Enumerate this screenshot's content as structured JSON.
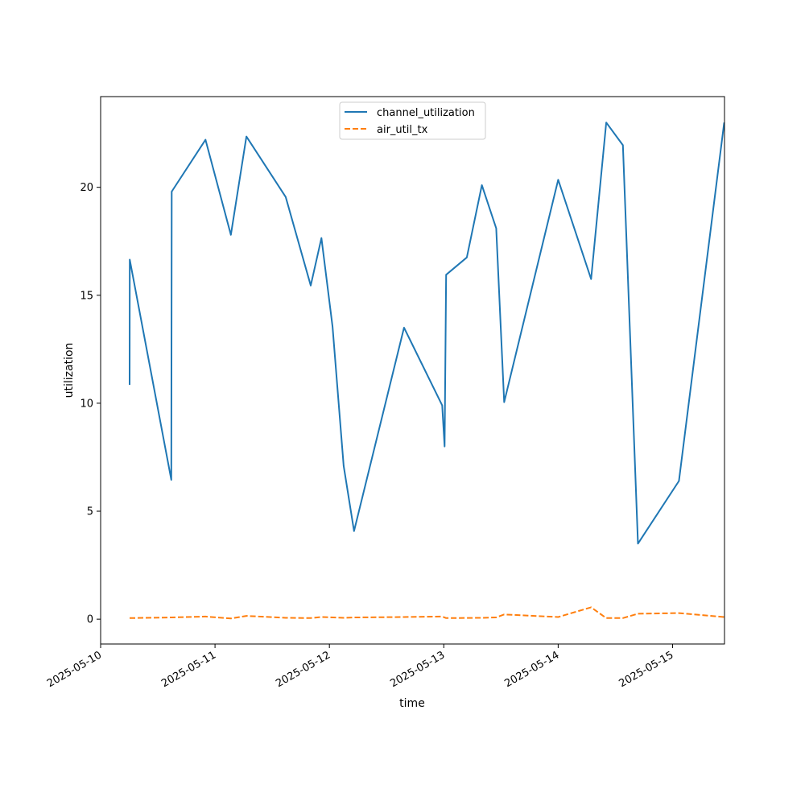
{
  "chart_data": {
    "type": "line",
    "title": "",
    "xlabel": "time",
    "ylabel": "utilization",
    "x_ticks": [
      "2025-05-10",
      "2025-05-11",
      "2025-05-12",
      "2025-05-13",
      "2025-05-14",
      "2025-05-15"
    ],
    "y_ticks": [
      0,
      5,
      10,
      15,
      20
    ],
    "xlim": [
      "2025-05-10 00:00",
      "2025-05-15 10:54"
    ],
    "ylim": [
      -1.15,
      24.2
    ],
    "grid": false,
    "legend_position": "top-center",
    "series": [
      {
        "name": "channel_utilization",
        "color": "#1f77b4",
        "style": "solid",
        "x": [
          "2025-05-10 06:05",
          "2025-05-10 06:07",
          "2025-05-10 14:50",
          "2025-05-10 14:55",
          "2025-05-10 22:00",
          "2025-05-11 03:20",
          "2025-05-11 06:35",
          "2025-05-11 14:50",
          "2025-05-11 20:05",
          "2025-05-11 22:20",
          "2025-05-12 00:40",
          "2025-05-12 03:00",
          "2025-05-12 05:10",
          "2025-05-12 15:40",
          "2025-05-12 23:40",
          "2025-05-13 00:10",
          "2025-05-13 00:30",
          "2025-05-13 04:50",
          "2025-05-13 08:00",
          "2025-05-13 11:00",
          "2025-05-13 12:40",
          "2025-05-14 00:00",
          "2025-05-14 06:55",
          "2025-05-14 10:05",
          "2025-05-14 13:35",
          "2025-05-14 16:45",
          "2025-05-15 01:20",
          "2025-05-15 10:50"
        ],
        "y": [
          10.85,
          16.65,
          6.45,
          19.8,
          22.2,
          17.8,
          22.35,
          19.55,
          15.45,
          17.65,
          13.55,
          7.1,
          4.08,
          13.5,
          9.9,
          8.0,
          15.95,
          16.75,
          20.1,
          18.1,
          10.05,
          20.35,
          15.75,
          23.0,
          21.95,
          3.5,
          6.4,
          23.0
        ]
      },
      {
        "name": "air_util_tx",
        "color": "#ff7f0e",
        "style": "dashed",
        "x": [
          "2025-05-10 06:05",
          "2025-05-10 14:55",
          "2025-05-10 22:00",
          "2025-05-11 03:20",
          "2025-05-11 06:35",
          "2025-05-11 14:50",
          "2025-05-11 20:05",
          "2025-05-11 22:20",
          "2025-05-12 03:00",
          "2025-05-12 05:10",
          "2025-05-12 15:40",
          "2025-05-12 23:40",
          "2025-05-13 00:30",
          "2025-05-13 08:00",
          "2025-05-13 11:00",
          "2025-05-13 12:40",
          "2025-05-14 00:00",
          "2025-05-14 06:55",
          "2025-05-14 10:05",
          "2025-05-14 13:35",
          "2025-05-14 16:45",
          "2025-05-15 01:20",
          "2025-05-15 10:50"
        ],
        "y": [
          0.05,
          0.08,
          0.12,
          0.03,
          0.15,
          0.06,
          0.05,
          0.1,
          0.06,
          0.08,
          0.1,
          0.12,
          0.05,
          0.06,
          0.08,
          0.22,
          0.1,
          0.55,
          0.05,
          0.05,
          0.25,
          0.28,
          0.1
        ]
      }
    ]
  }
}
